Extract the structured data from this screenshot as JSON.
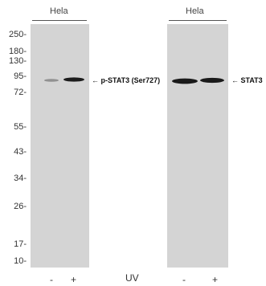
{
  "panels": [
    {
      "cell_line": "Hela",
      "band_label": "← p-STAT3 (Ser727)"
    },
    {
      "cell_line": "Hela",
      "band_label": "← STAT3"
    }
  ],
  "mw_markers": [
    "250-",
    "180-",
    "130-",
    "95-",
    "72-",
    "55-",
    "43-",
    "34-",
    "26-",
    "17-",
    "10-"
  ],
  "lanes": {
    "left": [
      "-",
      "+"
    ],
    "treatment": "UV",
    "right": [
      "-",
      "+"
    ]
  },
  "colors": {
    "membrane": "#d6d6d6",
    "band": "#1e1e1e"
  }
}
